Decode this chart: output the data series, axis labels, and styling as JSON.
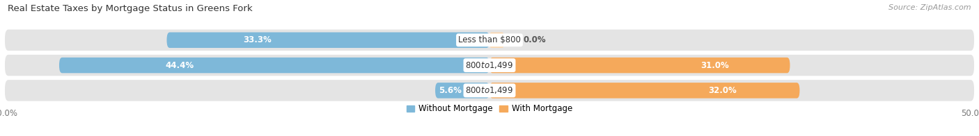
{
  "title": "Real Estate Taxes by Mortgage Status in Greens Fork",
  "source": "Source: ZipAtlas.com",
  "categories": [
    "Less than $800",
    "$800 to $1,499",
    "$800 to $1,499"
  ],
  "without_mortgage": [
    33.3,
    44.4,
    5.6
  ],
  "with_mortgage": [
    0.0,
    31.0,
    32.0
  ],
  "color_without": "#7eb8d9",
  "color_with": "#f5a95b",
  "color_without_light": "#c5dff0",
  "color_with_light": "#fad7b0",
  "bar_bg_color": "#e4e4e4",
  "xlim": [
    -50,
    50
  ],
  "title_fontsize": 9.5,
  "source_fontsize": 8,
  "label_fontsize": 8.5,
  "legend_fontsize": 8.5,
  "bar_height": 0.62,
  "figsize": [
    14.06,
    1.96
  ],
  "dpi": 100
}
